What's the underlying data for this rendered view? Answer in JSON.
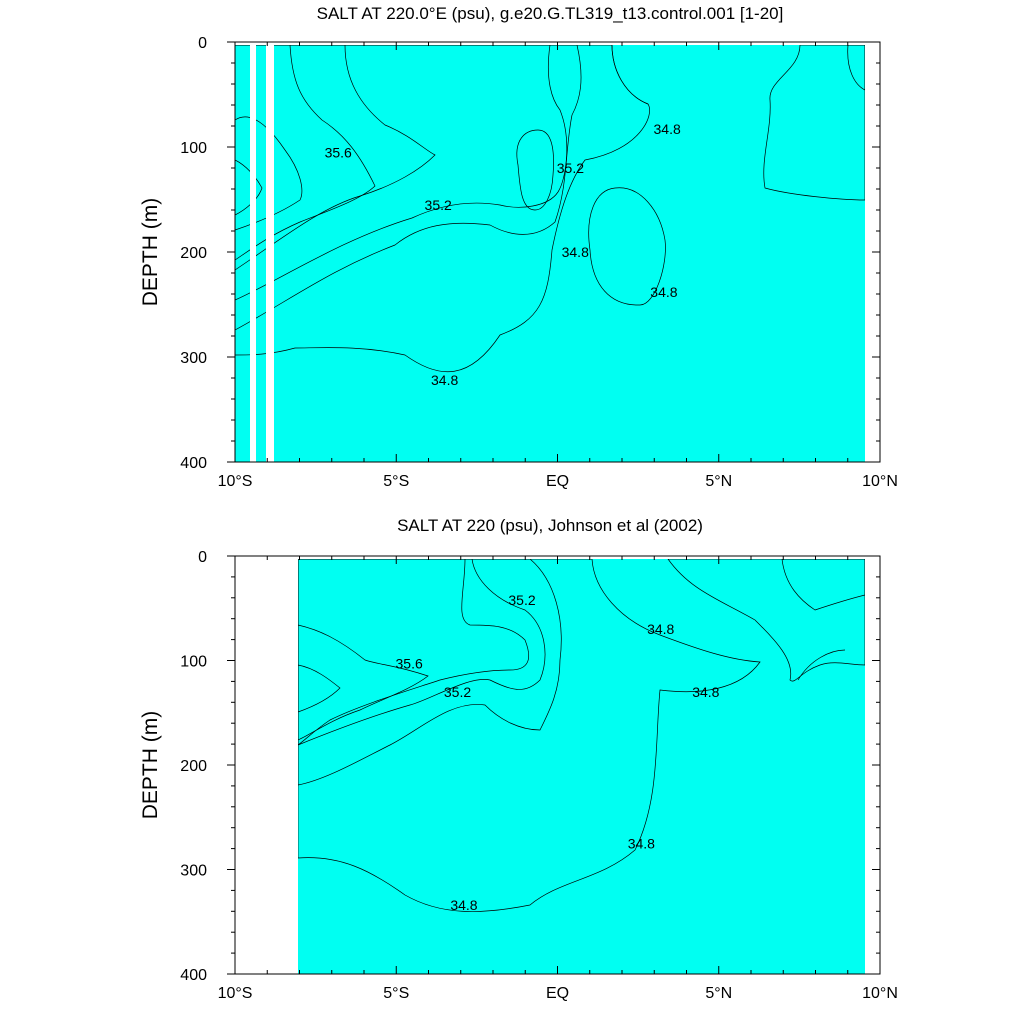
{
  "chart_data": [
    {
      "type": "contour",
      "title": "SALT AT 220.0°E (psu), g.e20.G.TL319_t13.control.001 [1-20]",
      "ylabel": "DEPTH (m)",
      "xlim": [
        -10,
        10
      ],
      "ylim": [
        0,
        400
      ],
      "y_inverted": true,
      "x_ticks": [
        -10,
        -5,
        0,
        5,
        10
      ],
      "x_tick_labels": [
        "10°S",
        "5°S",
        "EQ",
        "5°N",
        "10°N"
      ],
      "y_ticks": [
        0,
        100,
        200,
        300,
        400
      ],
      "y_tick_labels": [
        "0",
        "100",
        "200",
        "300",
        "400"
      ],
      "data_coverage_x": [
        -10,
        10
      ],
      "missing_columns_x": [
        -9.55,
        -9.05
      ],
      "contour_levels": [
        34.2,
        34.4,
        34.6,
        34.8,
        35.0,
        35.2,
        35.4,
        35.6,
        35.8,
        36.0
      ],
      "level_colors": {
        "34.2": "#00c8f0",
        "34.4": "#36e8ff",
        "34.6": "#00fff2",
        "34.8": "#00ffd0",
        "35.0": "#00ff9a",
        "35.2": "#00ff40",
        "35.4": "#9cff1e",
        "35.6": "#ffff00",
        "35.8": "#ffc93a",
        "36.0": "#f0a030"
      },
      "contour_labels": [
        {
          "text": "35.6",
          "x": -6.8,
          "y": 105
        },
        {
          "text": "35.2",
          "x": -3.7,
          "y": 155
        },
        {
          "text": "35.2",
          "x": 0.4,
          "y": 120
        },
        {
          "text": "34.8",
          "x": 3.4,
          "y": 83
        },
        {
          "text": "34.8",
          "x": 0.55,
          "y": 200
        },
        {
          "text": "34.8",
          "x": 3.3,
          "y": 238
        },
        {
          "text": "34.8",
          "x": -3.5,
          "y": 322
        }
      ]
    },
    {
      "type": "contour",
      "title": "SALT AT 220 (psu), Johnson et al (2002)",
      "ylabel": "DEPTH (m)",
      "xlim": [
        -10,
        10
      ],
      "ylim": [
        0,
        400
      ],
      "y_inverted": true,
      "x_ticks": [
        -10,
        -5,
        0,
        5,
        10
      ],
      "x_tick_labels": [
        "10°S",
        "5°S",
        "EQ",
        "5°N",
        "10°N"
      ],
      "y_ticks": [
        0,
        100,
        200,
        300,
        400
      ],
      "y_tick_labels": [
        "0",
        "100",
        "200",
        "300",
        "400"
      ],
      "data_coverage_x": [
        -8,
        10
      ],
      "contour_levels": [
        34.2,
        34.4,
        34.6,
        34.8,
        35.0,
        35.2,
        35.4,
        35.6,
        35.8
      ],
      "level_colors": {
        "34.2": "#00c8f0",
        "34.4": "#36e8ff",
        "34.6": "#00fff2",
        "34.8": "#00ffd0",
        "35.0": "#00ff9a",
        "35.2": "#00ff40",
        "35.4": "#9cff1e",
        "35.6": "#ffff00",
        "35.8": "#ffc93a"
      },
      "contour_labels": [
        {
          "text": "35.2",
          "x": -1.1,
          "y": 42
        },
        {
          "text": "35.6",
          "x": -4.6,
          "y": 103
        },
        {
          "text": "35.2",
          "x": -3.1,
          "y": 130
        },
        {
          "text": "34.8",
          "x": 3.2,
          "y": 70
        },
        {
          "text": "34.8",
          "x": 4.6,
          "y": 130
        },
        {
          "text": "34.8",
          "x": 2.6,
          "y": 275
        },
        {
          "text": "34.8",
          "x": -2.9,
          "y": 334
        }
      ]
    }
  ]
}
